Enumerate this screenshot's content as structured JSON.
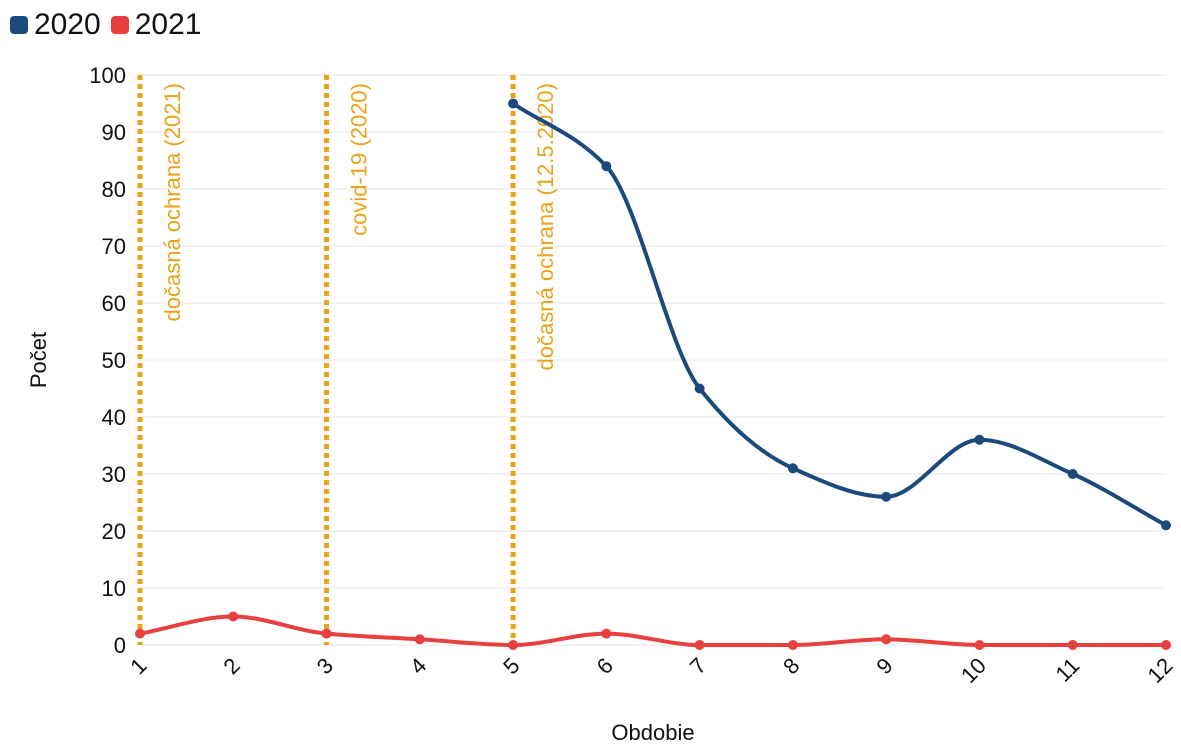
{
  "chart_data": {
    "type": "line",
    "xlabel": "Obdobie",
    "ylabel": "Počet",
    "x": [
      1,
      2,
      3,
      4,
      5,
      6,
      7,
      8,
      9,
      10,
      11,
      12
    ],
    "ylim": [
      0,
      100
    ],
    "yticks": [
      0,
      10,
      20,
      30,
      40,
      50,
      60,
      70,
      80,
      90,
      100
    ],
    "grid": true,
    "legend_position": "top-left",
    "series": [
      {
        "name": "2020",
        "color": "#1b4a7c",
        "values": [
          null,
          null,
          null,
          null,
          95,
          84,
          45,
          31,
          26,
          36,
          30,
          21
        ]
      },
      {
        "name": "2021",
        "color": "#e8403f",
        "values": [
          2,
          5,
          2,
          1,
          0,
          2,
          0,
          0,
          1,
          0,
          0,
          0
        ]
      }
    ],
    "annotations": [
      {
        "x": 1,
        "label": "dočasná ochrana (2021)",
        "color": "#e8a317"
      },
      {
        "x": 3,
        "label": "covid-19 (2020)",
        "color": "#e8a317"
      },
      {
        "x": 5,
        "label": "dočasná ochrana (12.5.2020)",
        "color": "#e8a317"
      }
    ]
  }
}
